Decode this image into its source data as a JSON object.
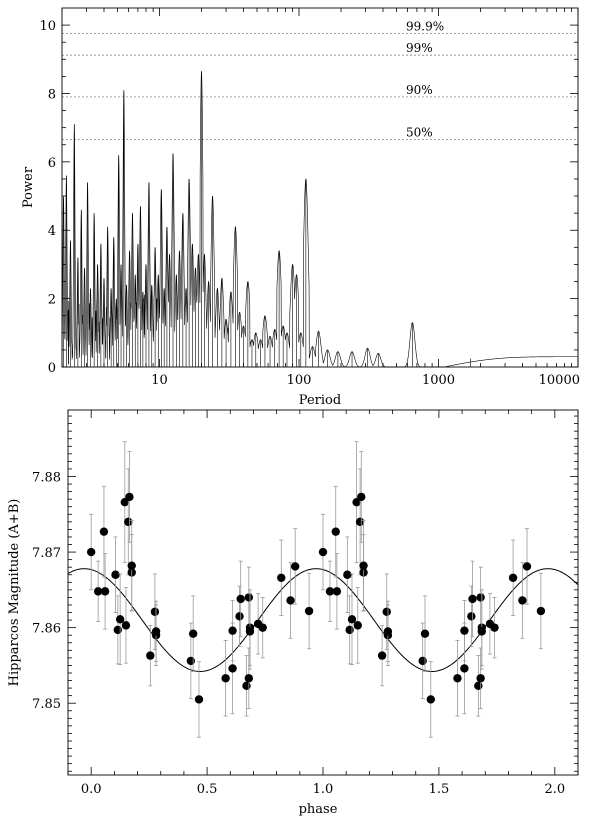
{
  "chart_data": [
    {
      "type": "line",
      "xlabel": "Period",
      "ylabel": "Power",
      "xscale": "log",
      "xlim": [
        2,
        10000
      ],
      "ylim": [
        0,
        10.5
      ],
      "xticks": [
        {
          "value": 10,
          "label": "10"
        },
        {
          "value": 100,
          "label": "100"
        },
        {
          "value": 1000,
          "label": "1000"
        },
        {
          "value": 10000,
          "label": "10000"
        }
      ],
      "yticks": [
        {
          "value": 0,
          "label": "0"
        },
        {
          "value": 2,
          "label": "2"
        },
        {
          "value": 4,
          "label": "4"
        },
        {
          "value": 6,
          "label": "6"
        },
        {
          "value": 8,
          "label": "8"
        },
        {
          "value": 10,
          "label": "10"
        }
      ],
      "significance_levels": [
        {
          "label": "99.9%",
          "power": 9.75
        },
        {
          "label": "99%",
          "power": 9.12
        },
        {
          "label": "90%",
          "power": 7.9
        },
        {
          "label": "50%",
          "power": 6.65
        }
      ],
      "peaks": [
        [
          2.05,
          5.0
        ],
        [
          2.15,
          5.6
        ],
        [
          2.3,
          3.7
        ],
        [
          2.45,
          7.1
        ],
        [
          2.6,
          3.2
        ],
        [
          2.75,
          4.6
        ],
        [
          2.9,
          2.9
        ],
        [
          3.05,
          5.4
        ],
        [
          3.2,
          2.3
        ],
        [
          3.4,
          4.5
        ],
        [
          3.6,
          3.0
        ],
        [
          3.8,
          3.6
        ],
        [
          4.0,
          2.6
        ],
        [
          4.25,
          4.1
        ],
        [
          4.5,
          2.3
        ],
        [
          4.7,
          3.8
        ],
        [
          4.9,
          2.0
        ],
        [
          5.1,
          6.2
        ],
        [
          5.3,
          3.0
        ],
        [
          5.55,
          8.1
        ],
        [
          5.8,
          2.4
        ],
        [
          6.1,
          3.4
        ],
        [
          6.4,
          4.5
        ],
        [
          6.7,
          2.7
        ],
        [
          7.0,
          3.6
        ],
        [
          7.3,
          4.7
        ],
        [
          7.6,
          2.2
        ],
        [
          8.0,
          3.0
        ],
        [
          8.4,
          5.4
        ],
        [
          8.8,
          2.4
        ],
        [
          9.3,
          3.5
        ],
        [
          9.8,
          2.7
        ],
        [
          10.3,
          5.2
        ],
        [
          10.8,
          2.3
        ],
        [
          11.3,
          4.1
        ],
        [
          11.8,
          3.3
        ],
        [
          12.5,
          6.25
        ],
        [
          13.2,
          2.7
        ],
        [
          13.9,
          3.4
        ],
        [
          14.7,
          4.5
        ],
        [
          15.5,
          2.3
        ],
        [
          16.3,
          5.5
        ],
        [
          17.2,
          3.6
        ],
        [
          18.1,
          2.9
        ],
        [
          19.0,
          3.3
        ],
        [
          20.0,
          8.65
        ],
        [
          21.0,
          3.3
        ],
        [
          22.5,
          2.5
        ],
        [
          24.0,
          5.0
        ],
        [
          26.0,
          2.3
        ],
        [
          28.0,
          2.6
        ],
        [
          30.0,
          1.4
        ],
        [
          32.5,
          2.2
        ],
        [
          35.0,
          4.1
        ],
        [
          37.5,
          1.6
        ],
        [
          40.0,
          1.2
        ],
        [
          43.0,
          2.5
        ],
        [
          46.0,
          0.8
        ],
        [
          49.0,
          1.0
        ],
        [
          53.0,
          0.8
        ],
        [
          57.0,
          1.5
        ],
        [
          62.0,
          0.9
        ],
        [
          67.0,
          1.1
        ],
        [
          72.0,
          3.4
        ],
        [
          77.0,
          1.2
        ],
        [
          82.0,
          1.0
        ],
        [
          90.0,
          3.0
        ],
        [
          96.0,
          2.7
        ],
        [
          103.0,
          1.0
        ],
        [
          112.0,
          5.5
        ],
        [
          125.0,
          0.6
        ],
        [
          138.0,
          1.05
        ],
        [
          160.0,
          0.5
        ],
        [
          190.0,
          0.45
        ],
        [
          240.0,
          0.45
        ],
        [
          310.0,
          0.55
        ],
        [
          370.0,
          0.4
        ],
        [
          650.0,
          1.3
        ],
        [
          1100.0,
          -0.05
        ],
        [
          1700.0,
          0.25
        ],
        [
          10000.0,
          0.3
        ]
      ]
    },
    {
      "type": "scatter",
      "xlabel": "phase",
      "ylabel": "Hipparcos Magnitude (A+B)",
      "xlim": [
        -0.1,
        2.1
      ],
      "ylim": [
        7.8405,
        7.8888
      ],
      "y_inverted": false,
      "xticks": [
        {
          "value": 0,
          "label": "0.0"
        },
        {
          "value": 0.5,
          "label": "0.5"
        },
        {
          "value": 1,
          "label": "1.0"
        },
        {
          "value": 1.5,
          "label": "1.5"
        },
        {
          "value": 2,
          "label": "2.0"
        }
      ],
      "yticks": [
        {
          "value": 7.85,
          "label": "7.85"
        },
        {
          "value": 7.86,
          "label": "7.86"
        },
        {
          "value": 7.87,
          "label": "7.87"
        },
        {
          "value": 7.88,
          "label": "7.88"
        }
      ],
      "model": {
        "mean": 7.861,
        "amplitude": 0.0068,
        "phase_of_max": 0.97
      },
      "points": [
        [
          0.0,
          7.87,
          0.005
        ],
        [
          0.03,
          7.8648,
          0.004
        ],
        [
          0.055,
          7.8727,
          0.006
        ],
        [
          0.06,
          7.8648,
          0.005
        ],
        [
          0.105,
          7.867,
          0.005
        ],
        [
          0.115,
          7.8597,
          0.0045
        ],
        [
          0.125,
          7.8611,
          0.006
        ],
        [
          0.145,
          7.8766,
          0.008
        ],
        [
          0.15,
          7.8603,
          0.005
        ],
        [
          0.16,
          7.874,
          0.007
        ],
        [
          0.165,
          7.8773,
          0.006
        ],
        [
          0.175,
          7.8673,
          0.005
        ],
        [
          0.175,
          7.8682,
          0.006
        ],
        [
          0.255,
          7.8563,
          0.004
        ],
        [
          0.275,
          7.8621,
          0.005
        ],
        [
          0.28,
          7.859,
          0.004
        ],
        [
          0.28,
          7.8595,
          0.004
        ],
        [
          0.43,
          7.8556,
          0.005
        ],
        [
          0.44,
          7.8592,
          0.005
        ],
        [
          0.465,
          7.8505,
          0.005
        ],
        [
          0.58,
          7.8533,
          0.005
        ],
        [
          0.61,
          7.8546,
          0.006
        ],
        [
          0.61,
          7.8596,
          0.004
        ],
        [
          0.64,
          7.8615,
          0.004
        ],
        [
          0.645,
          7.8638,
          0.005
        ],
        [
          0.67,
          7.8523,
          0.004
        ],
        [
          0.68,
          7.864,
          0.004
        ],
        [
          0.68,
          7.8533,
          0.004
        ],
        [
          0.685,
          7.86,
          0.005
        ],
        [
          0.685,
          7.8595,
          0.005
        ],
        [
          0.72,
          7.8605,
          0.004
        ],
        [
          0.74,
          7.86,
          0.004
        ],
        [
          0.82,
          7.8666,
          0.005
        ],
        [
          0.86,
          7.8636,
          0.005
        ],
        [
          0.88,
          7.8681,
          0.005
        ],
        [
          0.94,
          7.8622,
          0.005
        ]
      ]
    }
  ]
}
